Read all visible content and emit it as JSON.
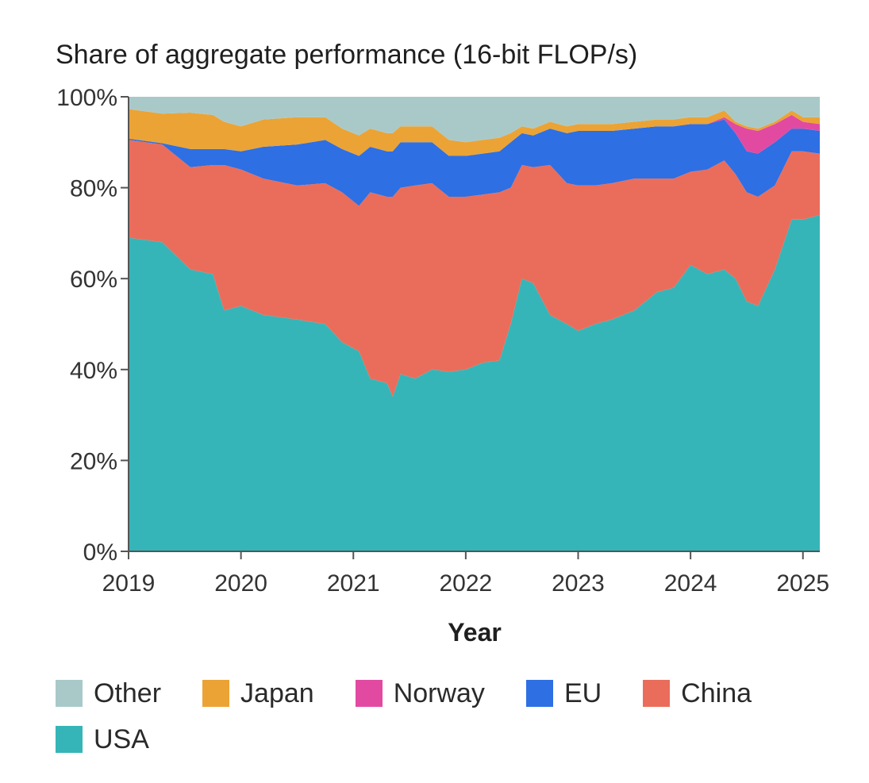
{
  "chart_data": {
    "type": "area",
    "stacked": true,
    "title": "Share of aggregate performance (16-bit FLOP/s)",
    "xlabel": "Year",
    "ylabel": "",
    "x_ticks": [
      "2019",
      "2020",
      "2021",
      "2022",
      "2023",
      "2024",
      "2025"
    ],
    "y_ticks": [
      "0%",
      "20%",
      "40%",
      "60%",
      "80%",
      "100%"
    ],
    "ylim": [
      0,
      100
    ],
    "xlim": [
      2019.0,
      2025.15
    ],
    "grid": false,
    "legend_position": "bottom",
    "x": [
      2019.0,
      2019.3,
      2019.55,
      2019.75,
      2019.85,
      2020.0,
      2020.2,
      2020.5,
      2020.75,
      2020.9,
      2021.05,
      2021.15,
      2021.3,
      2021.35,
      2021.42,
      2021.55,
      2021.7,
      2021.85,
      2022.0,
      2022.15,
      2022.3,
      2022.4,
      2022.5,
      2022.6,
      2022.75,
      2022.9,
      2023.0,
      2023.15,
      2023.3,
      2023.5,
      2023.7,
      2023.85,
      2024.0,
      2024.15,
      2024.3,
      2024.4,
      2024.5,
      2024.6,
      2024.75,
      2024.9,
      2025.0,
      2025.15
    ],
    "series": [
      {
        "name": "USA",
        "color": "#36b5b8",
        "values": [
          69,
          68,
          62,
          61,
          53,
          54,
          52,
          51,
          50,
          46,
          44,
          38,
          37,
          34,
          39,
          38,
          40,
          39.5,
          40,
          41.5,
          42,
          50,
          60,
          59,
          52,
          50,
          48.5,
          50,
          51,
          53,
          57,
          58,
          63,
          61,
          62,
          60,
          55,
          54,
          62,
          73,
          73,
          74
        ]
      },
      {
        "name": "China",
        "color": "#ea6d5b",
        "values": [
          21.5,
          21.5,
          22.5,
          24,
          32,
          30,
          30,
          29.5,
          31,
          33,
          32,
          41,
          41,
          44,
          41,
          42.5,
          41,
          38.5,
          38,
          37,
          37,
          30,
          25,
          25.5,
          33,
          31,
          32,
          30.5,
          30,
          29,
          25,
          24,
          20.5,
          23,
          24,
          23,
          24,
          24,
          18.5,
          15,
          15,
          13.5
        ]
      },
      {
        "name": "EU",
        "color": "#2e6fe3",
        "values": [
          0.3,
          0.3,
          4,
          3.5,
          3.5,
          4,
          7,
          9,
          9.5,
          9.5,
          11,
          10,
          10,
          10,
          10,
          9.5,
          9,
          9,
          9,
          9,
          9,
          10,
          7,
          7,
          8,
          11,
          12,
          12,
          11.5,
          11,
          11.5,
          11.5,
          10.5,
          10,
          9,
          9,
          9,
          9.5,
          9.5,
          5,
          5,
          5
        ]
      },
      {
        "name": "Norway",
        "color": "#e24aa2",
        "values": [
          0,
          0,
          0,
          0,
          0,
          0,
          0,
          0,
          0,
          0,
          0,
          0,
          0,
          0,
          0,
          0,
          0,
          0,
          0,
          0,
          0,
          0,
          0,
          0,
          0,
          0,
          0,
          0,
          0,
          0,
          0,
          0,
          0,
          0,
          0.5,
          2,
          5,
          5,
          4,
          3,
          1.5,
          1.5
        ]
      },
      {
        "name": "Japan",
        "color": "#eba335",
        "values": [
          6.5,
          6.5,
          8,
          7.5,
          6,
          5.5,
          6,
          6,
          5,
          4.5,
          4.5,
          4,
          4,
          4,
          3.5,
          3.5,
          3.5,
          3.5,
          3,
          3,
          3,
          2,
          1.5,
          1.5,
          1.5,
          1.5,
          1.5,
          1.5,
          1.5,
          1.5,
          1.5,
          1.5,
          1.5,
          1.5,
          1.5,
          0.5,
          0.5,
          0.5,
          0.5,
          1,
          1,
          1.5
        ]
      },
      {
        "name": "Other",
        "color": "#a9c9c9",
        "values": [
          2.7,
          3.7,
          3.5,
          4,
          5.5,
          6.5,
          5,
          4.5,
          4.5,
          7,
          8.5,
          7,
          8,
          8,
          6.5,
          6.5,
          6.5,
          9.5,
          10,
          9.5,
          9,
          8,
          6.5,
          7,
          5.5,
          6.5,
          6,
          6,
          6,
          5.5,
          5,
          5,
          4.5,
          4.5,
          3,
          5.5,
          6.5,
          7,
          5.5,
          3,
          4.5,
          4.5
        ]
      }
    ]
  },
  "legend": {
    "items": [
      {
        "label": "Other",
        "color": "#a9c9c9"
      },
      {
        "label": "Japan",
        "color": "#eba335"
      },
      {
        "label": "Norway",
        "color": "#e24aa2"
      },
      {
        "label": "EU",
        "color": "#2e6fe3"
      },
      {
        "label": "China",
        "color": "#ea6d5b"
      },
      {
        "label": "USA",
        "color": "#36b5b8"
      }
    ]
  }
}
